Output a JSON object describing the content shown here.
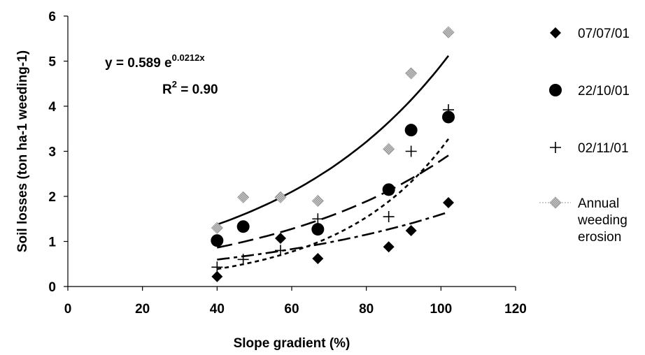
{
  "chart_data": {
    "type": "scatter",
    "title": "",
    "xlabel": "Slope gradient (%)",
    "ylabel": "Soil losses (ton ha-1 weeding-1)",
    "xlim": [
      0,
      120
    ],
    "ylim": [
      0,
      6
    ],
    "xticks": [
      0,
      20,
      40,
      60,
      80,
      100,
      120
    ],
    "yticks": [
      0,
      1,
      2,
      3,
      4,
      5,
      6
    ],
    "grid": false,
    "legend_position": "right",
    "annotation": {
      "equation_prefix": "y = 0.589 e",
      "equation_exponent": "0.0212x",
      "r2_prefix": "R",
      "r2_exponent": "2",
      "r2_suffix": " = 0.90"
    },
    "series": [
      {
        "name": "07/07/01",
        "marker": "diamond",
        "color": "#000000",
        "x": [
          40,
          57,
          67,
          86,
          92,
          102
        ],
        "y": [
          0.22,
          1.07,
          0.62,
          0.88,
          1.24,
          1.86
        ],
        "trend": {
          "kind": "exponential",
          "a": 0.31,
          "b": 0.0164,
          "dash": "long-short"
        }
      },
      {
        "name": "22/10/01",
        "marker": "circle",
        "color": "#000000",
        "x": [
          40,
          47,
          67,
          86,
          92,
          102
        ],
        "y": [
          1.02,
          1.33,
          1.27,
          2.15,
          3.47,
          3.76
        ],
        "trend": {
          "kind": "exponential",
          "a": 0.394,
          "b": 0.0196,
          "dash": "long"
        }
      },
      {
        "name": "02/11/01",
        "marker": "plus",
        "color": "#000000",
        "x": [
          40,
          47,
          57,
          67,
          86,
          92,
          102
        ],
        "y": [
          0.43,
          0.6,
          0.8,
          1.5,
          1.55,
          3.0,
          3.92
        ],
        "trend": {
          "kind": "exponential",
          "a": 0.098,
          "b": 0.0344,
          "dash": "short"
        }
      },
      {
        "name": "Annual weeding erosion",
        "legend_lines": [
          "Annual",
          "weeding",
          "erosion"
        ],
        "marker": "diamond-hatched",
        "color": "#9a9a9a",
        "x": [
          40,
          47,
          57,
          67,
          86,
          92,
          102
        ],
        "y": [
          1.3,
          1.98,
          1.98,
          1.9,
          3.05,
          4.73,
          5.64
        ],
        "trend": {
          "kind": "exponential",
          "a": 0.589,
          "b": 0.0212,
          "dash": "solid"
        }
      }
    ]
  }
}
